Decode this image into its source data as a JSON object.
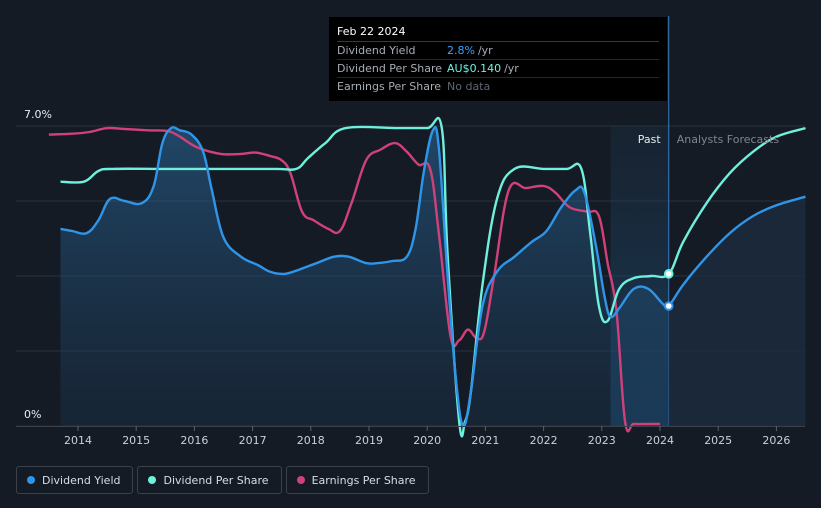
{
  "chart_data": {
    "type": "line",
    "title": "",
    "xlabel": "",
    "ylabel": "",
    "ylim": [
      0,
      7.0
    ],
    "y_tick_labels": [
      "7.0%",
      "0%"
    ],
    "x_ticks": [
      "2014",
      "2015",
      "2016",
      "2017",
      "2018",
      "2019",
      "2020",
      "2021",
      "2022",
      "2023",
      "2024",
      "2025",
      "2026"
    ],
    "past_label": "Past",
    "forecast_label": "Analysts Forecasts",
    "current_year": 2024.15,
    "past_band_start": 2023.15,
    "series": [
      {
        "name": "Dividend Yield",
        "color": "#2f95e8",
        "points": [
          [
            2013.7,
            4.6
          ],
          [
            2013.9,
            4.55
          ],
          [
            2014.15,
            4.5
          ],
          [
            2014.35,
            4.8
          ],
          [
            2014.55,
            5.3
          ],
          [
            2014.8,
            5.25
          ],
          [
            2015.1,
            5.2
          ],
          [
            2015.3,
            5.6
          ],
          [
            2015.45,
            6.6
          ],
          [
            2015.6,
            6.95
          ],
          [
            2015.75,
            6.9
          ],
          [
            2015.95,
            6.8
          ],
          [
            2016.15,
            6.4
          ],
          [
            2016.3,
            5.5
          ],
          [
            2016.5,
            4.4
          ],
          [
            2016.8,
            3.95
          ],
          [
            2017.1,
            3.75
          ],
          [
            2017.3,
            3.6
          ],
          [
            2017.55,
            3.55
          ],
          [
            2017.8,
            3.65
          ],
          [
            2018.1,
            3.8
          ],
          [
            2018.4,
            3.95
          ],
          [
            2018.65,
            3.95
          ],
          [
            2018.95,
            3.8
          ],
          [
            2019.15,
            3.8
          ],
          [
            2019.4,
            3.85
          ],
          [
            2019.65,
            3.95
          ],
          [
            2019.8,
            4.6
          ],
          [
            2019.95,
            6.0
          ],
          [
            2020.1,
            6.9
          ],
          [
            2020.2,
            6.5
          ],
          [
            2020.35,
            3.5
          ],
          [
            2020.5,
            1.0
          ],
          [
            2020.62,
            0.0
          ],
          [
            2020.75,
            0.8
          ],
          [
            2020.95,
            2.8
          ],
          [
            2021.2,
            3.6
          ],
          [
            2021.5,
            3.95
          ],
          [
            2021.8,
            4.3
          ],
          [
            2022.05,
            4.55
          ],
          [
            2022.3,
            5.1
          ],
          [
            2022.55,
            5.5
          ],
          [
            2022.7,
            5.45
          ],
          [
            2022.9,
            4.2
          ],
          [
            2023.05,
            3.0
          ],
          [
            2023.15,
            2.55
          ],
          [
            2023.3,
            2.75
          ],
          [
            2023.55,
            3.2
          ],
          [
            2023.8,
            3.2
          ],
          [
            2024.05,
            2.85
          ],
          [
            2024.15,
            2.8
          ],
          [
            2024.4,
            3.3
          ],
          [
            2024.8,
            3.95
          ],
          [
            2025.2,
            4.5
          ],
          [
            2025.6,
            4.9
          ],
          [
            2026.0,
            5.15
          ],
          [
            2026.5,
            5.35
          ]
        ]
      },
      {
        "name": "Dividend Per Share",
        "color": "#6ff0dc",
        "points": [
          [
            2013.7,
            5.7
          ],
          [
            2014.1,
            5.7
          ],
          [
            2014.35,
            5.95
          ],
          [
            2014.6,
            6.0
          ],
          [
            2015.5,
            6.0
          ],
          [
            2016.5,
            6.0
          ],
          [
            2017.4,
            6.0
          ],
          [
            2017.75,
            6.0
          ],
          [
            2017.95,
            6.25
          ],
          [
            2018.25,
            6.6
          ],
          [
            2018.6,
            6.95
          ],
          [
            2019.5,
            6.95
          ],
          [
            2020.0,
            6.95
          ],
          [
            2020.25,
            6.95
          ],
          [
            2020.35,
            4.0
          ],
          [
            2020.55,
            0.1
          ],
          [
            2020.65,
            0.1
          ],
          [
            2020.75,
            0.8
          ],
          [
            2020.95,
            3.3
          ],
          [
            2021.2,
            5.3
          ],
          [
            2021.5,
            6.0
          ],
          [
            2022.0,
            6.0
          ],
          [
            2022.4,
            6.0
          ],
          [
            2022.65,
            6.0
          ],
          [
            2022.8,
            4.5
          ],
          [
            2022.95,
            2.8
          ],
          [
            2023.1,
            2.45
          ],
          [
            2023.3,
            3.2
          ],
          [
            2023.55,
            3.45
          ],
          [
            2023.85,
            3.5
          ],
          [
            2024.15,
            3.55
          ],
          [
            2024.4,
            4.3
          ],
          [
            2024.8,
            5.2
          ],
          [
            2025.2,
            5.9
          ],
          [
            2025.6,
            6.4
          ],
          [
            2026.0,
            6.75
          ],
          [
            2026.5,
            6.95
          ]
        ]
      },
      {
        "name": "Earnings Per Share",
        "color": "#d0417a",
        "points": [
          [
            2013.5,
            6.8
          ],
          [
            2013.9,
            6.82
          ],
          [
            2014.2,
            6.86
          ],
          [
            2014.5,
            6.95
          ],
          [
            2014.8,
            6.93
          ],
          [
            2015.2,
            6.9
          ],
          [
            2015.55,
            6.88
          ],
          [
            2015.75,
            6.75
          ],
          [
            2016.05,
            6.5
          ],
          [
            2016.45,
            6.35
          ],
          [
            2016.8,
            6.35
          ],
          [
            2017.05,
            6.38
          ],
          [
            2017.3,
            6.3
          ],
          [
            2017.5,
            6.2
          ],
          [
            2017.65,
            5.9
          ],
          [
            2017.85,
            5.0
          ],
          [
            2018.05,
            4.8
          ],
          [
            2018.3,
            4.6
          ],
          [
            2018.5,
            4.55
          ],
          [
            2018.7,
            5.2
          ],
          [
            2018.95,
            6.2
          ],
          [
            2019.2,
            6.45
          ],
          [
            2019.45,
            6.6
          ],
          [
            2019.65,
            6.4
          ],
          [
            2019.85,
            6.1
          ],
          [
            2020.05,
            6.0
          ],
          [
            2020.2,
            4.5
          ],
          [
            2020.4,
            2.1
          ],
          [
            2020.55,
            2.0
          ],
          [
            2020.7,
            2.25
          ],
          [
            2020.85,
            2.05
          ],
          [
            2020.98,
            2.2
          ],
          [
            2021.15,
            3.5
          ],
          [
            2021.4,
            5.5
          ],
          [
            2021.7,
            5.55
          ],
          [
            2022.0,
            5.6
          ],
          [
            2022.2,
            5.45
          ],
          [
            2022.45,
            5.1
          ],
          [
            2022.75,
            5.0
          ],
          [
            2022.95,
            4.9
          ],
          [
            2023.1,
            3.8
          ],
          [
            2023.25,
            2.7
          ],
          [
            2023.4,
            0.1
          ],
          [
            2023.55,
            0.05
          ],
          [
            2023.8,
            0.05
          ],
          [
            2024.0,
            0.05
          ]
        ]
      }
    ]
  },
  "tooltip": {
    "date": "Feb 22 2024",
    "rows": {
      "yield_label": "Dividend Yield",
      "yield_value": "2.8%",
      "yield_unit": "/yr",
      "dps_label": "Dividend Per Share",
      "dps_value": "AU$0.140",
      "dps_unit": "/yr",
      "eps_label": "Earnings Per Share",
      "eps_value": "No data"
    }
  },
  "legend": {
    "items": [
      {
        "label": "Dividend Yield",
        "color": "#2f95e8"
      },
      {
        "label": "Dividend Per Share",
        "color": "#6ff0dc"
      },
      {
        "label": "Earnings Per Share",
        "color": "#d0417a"
      }
    ]
  }
}
